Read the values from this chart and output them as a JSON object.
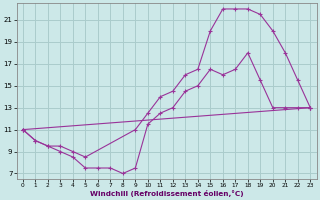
{
  "xlabel": "Windchill (Refroidissement éolien,°C)",
  "bg_color": "#cce8e8",
  "grid_color": "#aacccc",
  "line_color": "#993399",
  "xlim": [
    -0.5,
    23.5
  ],
  "ylim": [
    6.5,
    22.5
  ],
  "xticks": [
    0,
    1,
    2,
    3,
    4,
    5,
    6,
    7,
    8,
    9,
    10,
    11,
    12,
    13,
    14,
    15,
    16,
    17,
    18,
    19,
    20,
    21,
    22,
    23
  ],
  "yticks": [
    7,
    9,
    11,
    13,
    15,
    17,
    19,
    21
  ],
  "line1_x": [
    0,
    1,
    2,
    3,
    4,
    5,
    6,
    7,
    8,
    9,
    10,
    11,
    12,
    13,
    14,
    15,
    16,
    17,
    18,
    19,
    20,
    21,
    22,
    23
  ],
  "line1_y": [
    11,
    10,
    9.5,
    9,
    8.5,
    7.5,
    7.5,
    7.5,
    7.0,
    7.5,
    11.5,
    12.5,
    13,
    14.5,
    15,
    16.5,
    16,
    16.5,
    18,
    15.5,
    13,
    13,
    13,
    13
  ],
  "line2_x": [
    0,
    1,
    2,
    3,
    4,
    5,
    9,
    10,
    11,
    12,
    13,
    14,
    15,
    16,
    17,
    18,
    19,
    20,
    21,
    22,
    23
  ],
  "line2_y": [
    11,
    10,
    9.5,
    9.5,
    9,
    8.5,
    11,
    12.5,
    14,
    14.5,
    16,
    16.5,
    20,
    22,
    22,
    22,
    21.5,
    20,
    18,
    15.5,
    13
  ],
  "line3_x": [
    0,
    23
  ],
  "line3_y": [
    11,
    13
  ]
}
